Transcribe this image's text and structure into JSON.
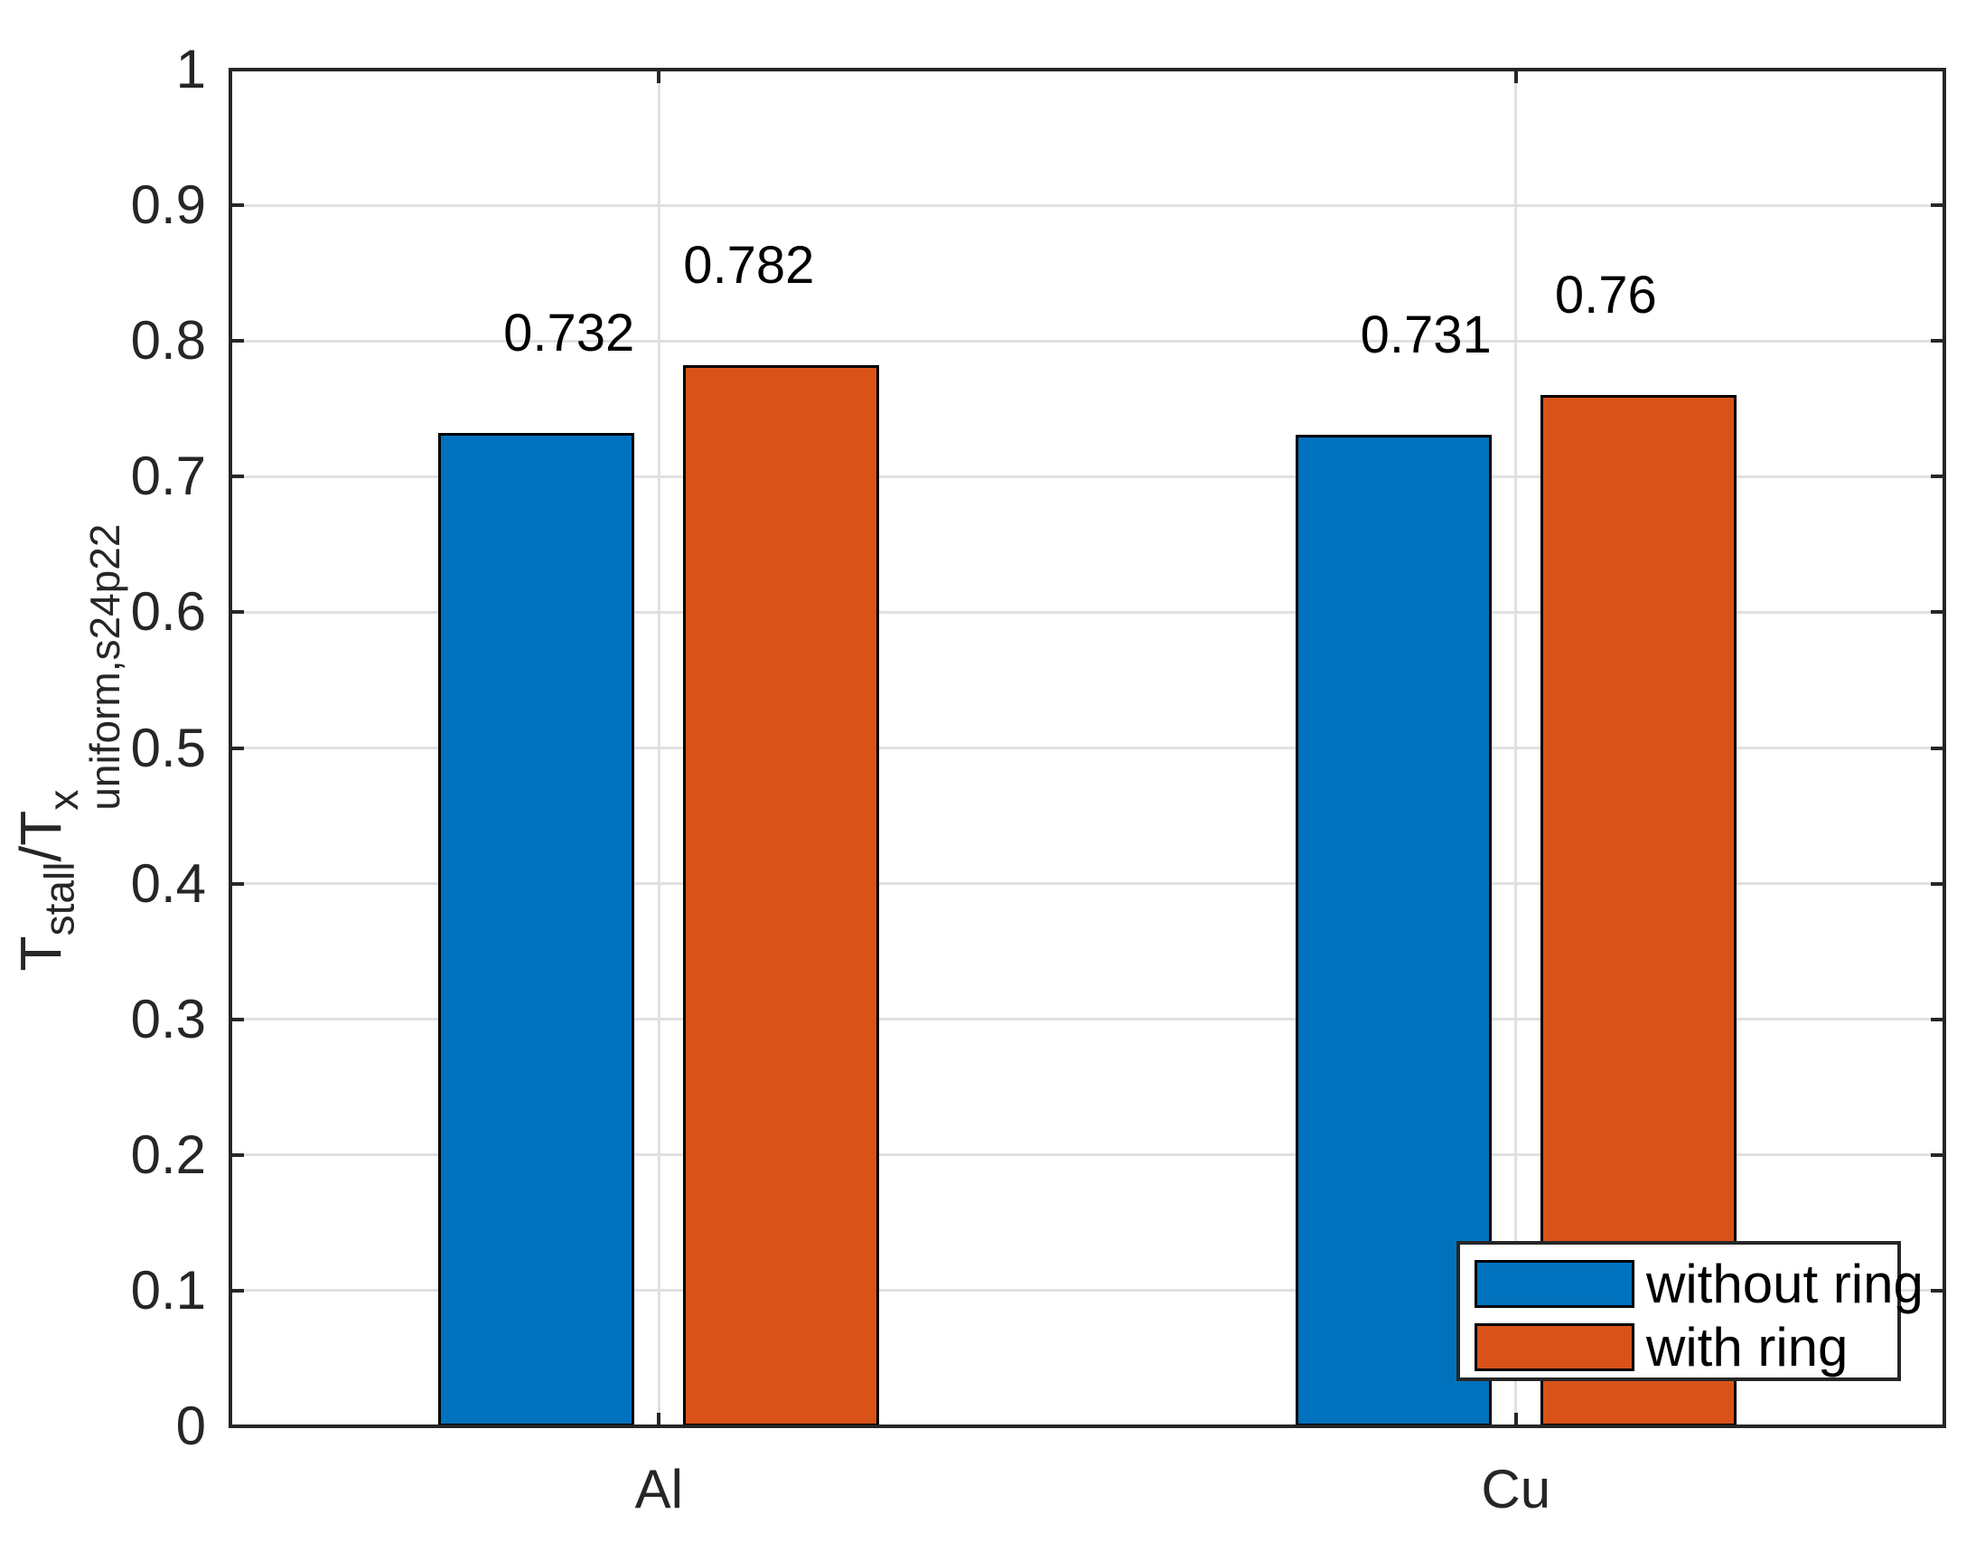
{
  "chart_data": {
    "type": "bar",
    "title": "",
    "xlabel": "",
    "ylabel": "T_stall/T^x_uniform,s24p22",
    "ylabel_rich": {
      "t1": "T",
      "sub1": "stall",
      "t2": "/T",
      "sup": "x",
      "sub2": "uniform,s24p22"
    },
    "categories": [
      "Al",
      "Cu"
    ],
    "series": [
      {
        "name": "without ring",
        "color": "#0072BD",
        "values": [
          0.732,
          0.731
        ],
        "labels": [
          "0.732",
          "0.731"
        ]
      },
      {
        "name": "with ring",
        "color": "#D95319",
        "values": [
          0.782,
          0.76
        ],
        "labels": [
          "0.782",
          "0.76"
        ]
      }
    ],
    "xlim": [
      0.5,
      2.5
    ],
    "ylim": [
      0,
      1
    ],
    "yticks": [
      0,
      0.1,
      0.2,
      0.3,
      0.4,
      0.5,
      0.6,
      0.7,
      0.8,
      0.9,
      1
    ],
    "ytick_labels": [
      "0",
      "0.1",
      "0.2",
      "0.3",
      "0.4",
      "0.5",
      "0.6",
      "0.7",
      "0.8",
      "0.9",
      "1"
    ],
    "grid": true,
    "legend": {
      "position": "bottom-right",
      "entries": [
        "without ring",
        "with ring"
      ]
    },
    "colors": {
      "axis": "#262626",
      "grid": "#e0e0e0",
      "background": "#ffffff",
      "bar_edge": "#000000"
    }
  }
}
